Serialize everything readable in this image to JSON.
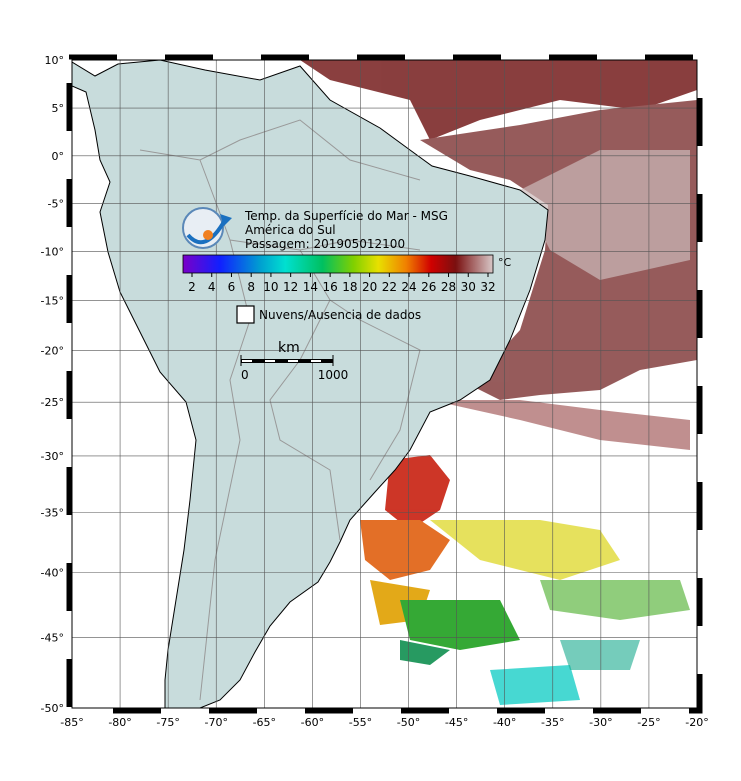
{
  "map": {
    "title_lines": [
      "Temp. da Superfície do Mar - MSG",
      "América do Sul",
      "Passagem: 201905012100"
    ],
    "colorbar": {
      "unit": "°C",
      "ticks": [
        2,
        4,
        6,
        8,
        10,
        12,
        14,
        16,
        18,
        20,
        22,
        24,
        26,
        28,
        30,
        32
      ]
    },
    "legend": "Nuvens/Ausencia de dados",
    "scale": {
      "unit": "km",
      "ticks": [
        0,
        1000
      ]
    },
    "lon_ticks": [
      {
        "value": -85,
        "label": "-85°"
      },
      {
        "value": -80,
        "label": "-80°"
      },
      {
        "value": -75,
        "label": "-75°"
      },
      {
        "value": -70,
        "label": "-70°"
      },
      {
        "value": -65,
        "label": "-65°"
      },
      {
        "value": -60,
        "label": "-60°"
      },
      {
        "value": -55,
        "label": "-55°"
      },
      {
        "value": -50,
        "label": "-50°"
      },
      {
        "value": -45,
        "label": "-45°"
      },
      {
        "value": -40,
        "label": "-40°"
      },
      {
        "value": -35,
        "label": "-35°"
      },
      {
        "value": -30,
        "label": "-30°"
      },
      {
        "value": -25,
        "label": "-25°"
      },
      {
        "value": -20,
        "label": "-20°"
      }
    ],
    "lat_ticks": [
      {
        "value": 10,
        "label": "10°"
      },
      {
        "value": 5,
        "label": "5°"
      },
      {
        "value": 0,
        "label": "0°"
      },
      {
        "value": -5,
        "label": "-5°"
      },
      {
        "value": -10,
        "label": "-10°"
      },
      {
        "value": -15,
        "label": "-15°"
      },
      {
        "value": -20,
        "label": "-20°"
      },
      {
        "value": -25,
        "label": "-25°"
      },
      {
        "value": -30,
        "label": "-30°"
      },
      {
        "value": -35,
        "label": "-35°"
      },
      {
        "value": -40,
        "label": "-40°"
      },
      {
        "value": -45,
        "label": "-45°"
      },
      {
        "value": -50,
        "label": "-50°"
      }
    ]
  }
}
